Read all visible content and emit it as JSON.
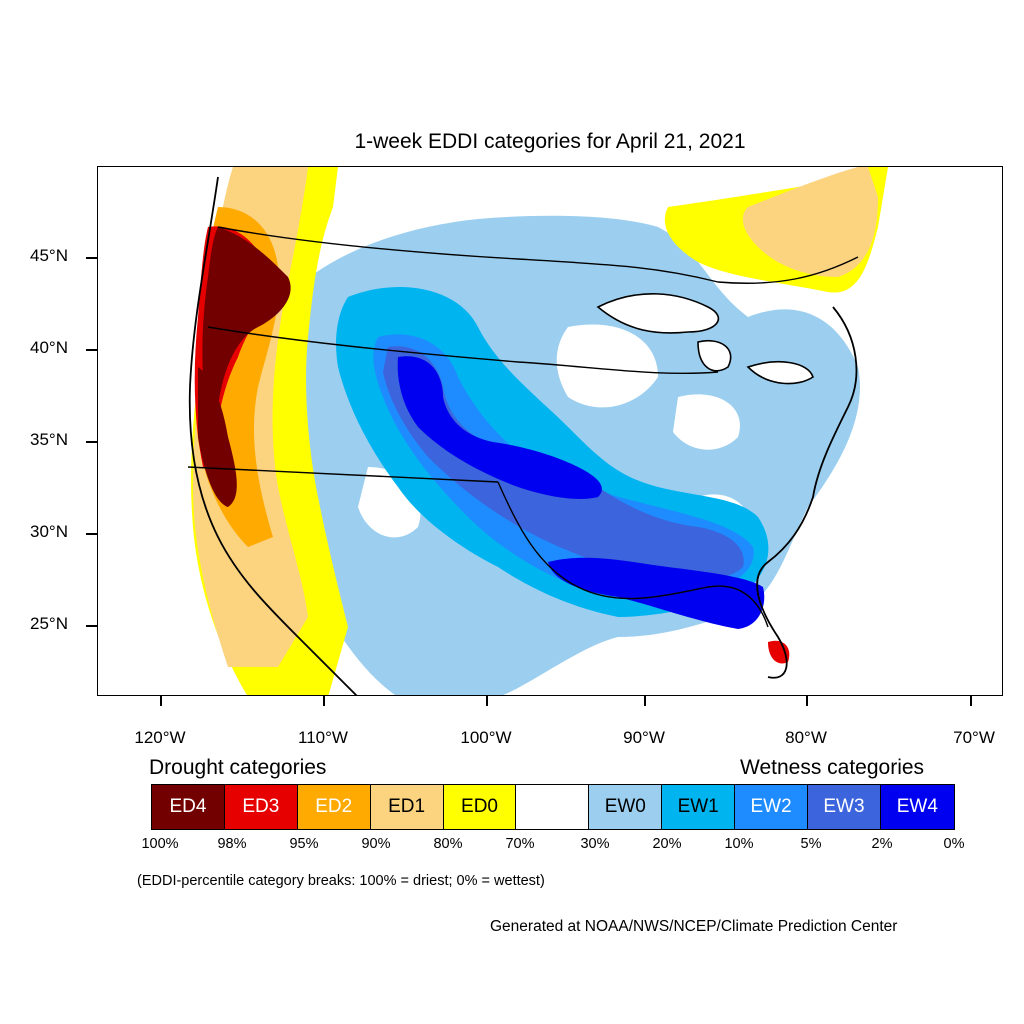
{
  "title": "1-week EDDI categories for April 21, 2021",
  "lat_ticks": [
    "45°N",
    "40°N",
    "35°N",
    "30°N",
    "25°N"
  ],
  "lon_ticks": [
    "120°W",
    "110°W",
    "100°W",
    "90°W",
    "80°W",
    "70°W"
  ],
  "legend": {
    "drought_heading": "Drought categories",
    "wetness_heading": "Wetness categories",
    "categories": [
      {
        "label": "ED4",
        "color": "#730000"
      },
      {
        "label": "ED3",
        "color": "#e60000"
      },
      {
        "label": "ED2",
        "color": "#ffaa00"
      },
      {
        "label": "ED1",
        "color": "#fcd37f"
      },
      {
        "label": "ED0",
        "color": "#ffff00"
      },
      {
        "label": "",
        "color": "#ffffff"
      },
      {
        "label": "EW0",
        "color": "#9ccfef"
      },
      {
        "label": "EW1",
        "color": "#00b4f0"
      },
      {
        "label": "EW2",
        "color": "#1e8cff"
      },
      {
        "label": "EW3",
        "color": "#3c64dc"
      },
      {
        "label": "EW4",
        "color": "#0000f0"
      }
    ],
    "percentiles": [
      "100%",
      "98%",
      "95%",
      "90%",
      "80%",
      "70%",
      "30%",
      "20%",
      "10%",
      "5%",
      "2%",
      "0%"
    ]
  },
  "note": "(EDDI-percentile category breaks: 100% = driest; 0% = wettest)",
  "credit": "Generated at NOAA/NWS/NCEP/Climate Prediction Center"
}
